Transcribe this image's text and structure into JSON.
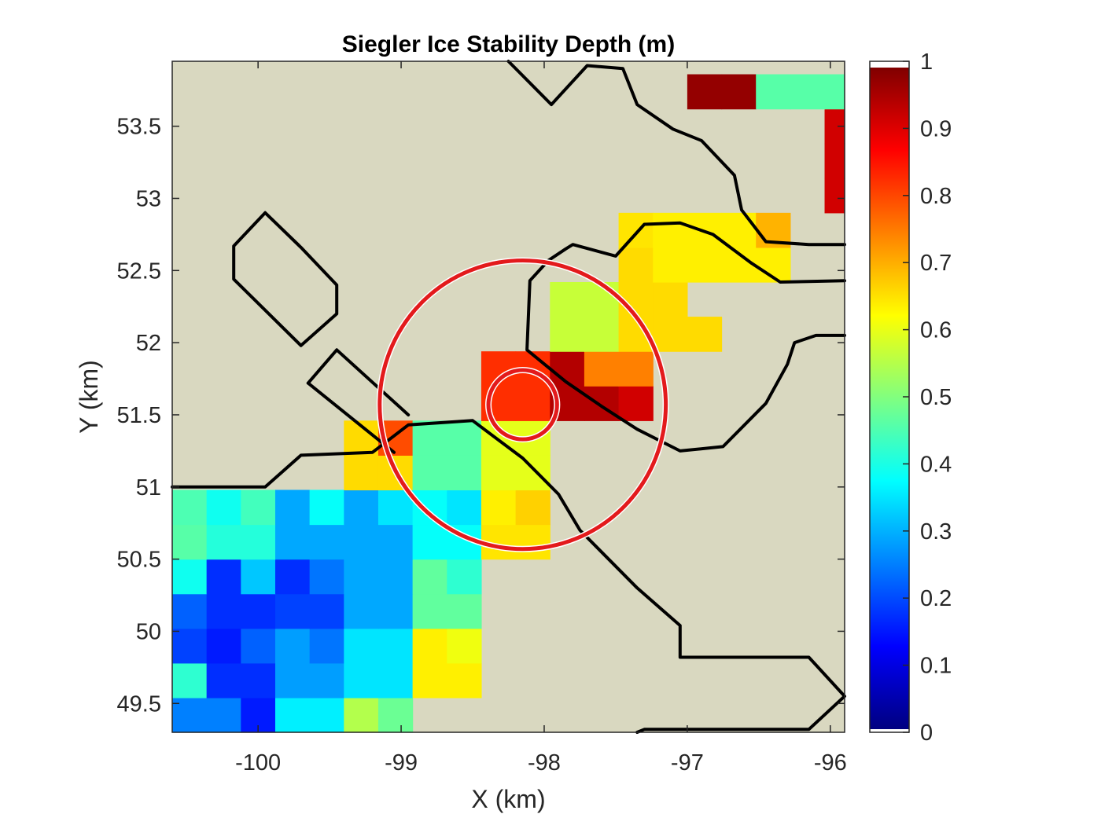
{
  "chart_data": {
    "type": "heatmap",
    "title": "Siegler Ice Stability Depth (m)",
    "xlabel": "X (km)",
    "ylabel": "Y (km)",
    "xlim": [
      -100.6,
      -95.9
    ],
    "ylim": [
      49.3,
      53.95
    ],
    "xticks": [
      -100,
      -99,
      -98,
      -97,
      -96
    ],
    "xtick_labels": [
      "-100",
      "-99",
      "-98",
      "-97",
      "-96"
    ],
    "yticks": [
      49.5,
      50,
      50.5,
      51,
      51.5,
      52,
      52.5,
      53,
      53.5
    ],
    "ytick_labels": [
      "49.5",
      "50",
      "50.5",
      "51",
      "51.5",
      "52",
      "52.5",
      "53",
      "53.5"
    ],
    "cell_size_km": 0.24,
    "background_color": "#d9d8c0",
    "colormap": "jet",
    "colorbar": {
      "range": [
        0,
        1
      ],
      "ticks": [
        0,
        0.1,
        0.2,
        0.3,
        0.4,
        0.5,
        0.6,
        0.7,
        0.8,
        0.9,
        1
      ],
      "tick_labels": [
        "0",
        "0.1",
        "0.2",
        "0.3",
        "0.4",
        "0.5",
        "0.6",
        "0.7",
        "0.8",
        "0.9",
        "1"
      ]
    },
    "grid_origin": {
      "x": -100.6,
      "y": 49.3
    },
    "cells": [
      [
        0,
        0,
        0.25
      ],
      [
        1,
        0,
        0.25
      ],
      [
        2,
        0,
        0.15
      ],
      [
        3,
        0,
        0.36
      ],
      [
        4,
        0,
        0.36
      ],
      [
        5,
        0,
        0.55
      ],
      [
        6,
        0,
        0.48
      ],
      [
        0,
        1,
        0.42
      ],
      [
        1,
        1,
        0.17
      ],
      [
        2,
        1,
        0.17
      ],
      [
        3,
        1,
        0.28
      ],
      [
        4,
        1,
        0.28
      ],
      [
        5,
        1,
        0.35
      ],
      [
        6,
        1,
        0.35
      ],
      [
        7,
        1,
        0.64
      ],
      [
        8,
        1,
        0.64
      ],
      [
        0,
        2,
        0.19
      ],
      [
        1,
        2,
        0.15
      ],
      [
        2,
        2,
        0.22
      ],
      [
        3,
        2,
        0.28
      ],
      [
        4,
        2,
        0.24
      ],
      [
        5,
        2,
        0.35
      ],
      [
        6,
        2,
        0.35
      ],
      [
        7,
        2,
        0.64
      ],
      [
        8,
        2,
        0.61
      ],
      [
        0,
        3,
        0.22
      ],
      [
        1,
        3,
        0.17
      ],
      [
        2,
        3,
        0.17
      ],
      [
        3,
        3,
        0.19
      ],
      [
        4,
        3,
        0.19
      ],
      [
        5,
        3,
        0.29
      ],
      [
        6,
        3,
        0.29
      ],
      [
        7,
        3,
        0.47
      ],
      [
        8,
        3,
        0.47
      ],
      [
        0,
        4,
        0.39
      ],
      [
        1,
        4,
        0.17
      ],
      [
        2,
        4,
        0.32
      ],
      [
        3,
        4,
        0.17
      ],
      [
        4,
        4,
        0.24
      ],
      [
        5,
        4,
        0.29
      ],
      [
        6,
        4,
        0.29
      ],
      [
        7,
        4,
        0.47
      ],
      [
        8,
        4,
        0.42
      ],
      [
        0,
        5,
        0.46
      ],
      [
        1,
        5,
        0.41
      ],
      [
        2,
        5,
        0.41
      ],
      [
        3,
        5,
        0.29
      ],
      [
        4,
        5,
        0.29
      ],
      [
        5,
        5,
        0.29
      ],
      [
        6,
        5,
        0.29
      ],
      [
        7,
        5,
        0.38
      ],
      [
        8,
        5,
        0.38
      ],
      [
        9,
        5,
        0.65
      ],
      [
        10,
        5,
        0.65
      ],
      [
        0,
        6,
        0.45
      ],
      [
        1,
        6,
        0.39
      ],
      [
        2,
        6,
        0.44
      ],
      [
        3,
        6,
        0.29
      ],
      [
        4,
        6,
        0.38
      ],
      [
        5,
        6,
        0.29
      ],
      [
        6,
        6,
        0.35
      ],
      [
        7,
        6,
        0.38
      ],
      [
        8,
        6,
        0.35
      ],
      [
        9,
        6,
        0.64
      ],
      [
        10,
        6,
        0.67
      ],
      [
        5,
        7,
        0.66
      ],
      [
        6,
        7,
        0.66
      ],
      [
        7,
        7,
        0.46
      ],
      [
        8,
        7,
        0.46
      ],
      [
        9,
        7,
        0.6
      ],
      [
        10,
        7,
        0.6
      ],
      [
        5,
        8,
        0.66
      ],
      [
        6,
        8,
        0.8
      ],
      [
        7,
        8,
        0.46
      ],
      [
        8,
        8,
        0.46
      ],
      [
        9,
        8,
        0.6
      ],
      [
        10,
        8,
        0.6
      ],
      [
        9,
        9,
        0.83
      ],
      [
        10,
        9,
        0.83
      ],
      [
        11,
        9,
        0.95
      ],
      [
        12,
        9,
        0.95
      ],
      [
        13,
        9,
        0.92
      ],
      [
        9,
        10,
        0.83
      ],
      [
        10,
        10,
        0.83
      ],
      [
        11,
        10,
        0.95
      ],
      [
        12,
        10,
        0.75
      ],
      [
        13,
        10,
        0.75
      ],
      [
        11,
        11,
        0.57
      ],
      [
        12,
        11,
        0.57
      ],
      [
        13,
        11,
        0.66
      ],
      [
        14,
        11,
        0.66
      ],
      [
        15,
        11,
        0.66
      ],
      [
        11,
        12,
        0.57
      ],
      [
        12,
        12,
        0.57
      ],
      [
        13,
        12,
        0.66
      ],
      [
        14,
        12,
        0.66
      ],
      [
        13,
        13,
        0.66
      ],
      [
        14,
        13,
        0.64
      ],
      [
        15,
        13,
        0.64
      ],
      [
        16,
        13,
        0.64
      ],
      [
        17,
        13,
        0.64
      ],
      [
        13,
        14,
        0.65
      ],
      [
        14,
        14,
        0.64
      ],
      [
        15,
        14,
        0.64
      ],
      [
        16,
        14,
        0.64
      ],
      [
        17,
        14,
        0.7
      ],
      [
        19,
        15,
        0.92
      ],
      [
        20,
        15,
        0.92
      ],
      [
        19,
        16,
        0.92
      ],
      [
        20,
        16,
        0.92
      ],
      [
        21,
        16,
        0.92
      ],
      [
        19,
        17,
        0.92
      ],
      [
        20,
        17,
        0.75
      ],
      [
        21,
        17,
        0.92
      ],
      [
        15,
        18,
        0.98
      ],
      [
        16,
        18,
        0.98
      ],
      [
        17,
        18,
        0.46
      ],
      [
        18,
        18,
        0.46
      ],
      [
        19,
        18,
        0.46
      ],
      [
        20,
        18,
        0.53
      ]
    ],
    "contours": [
      [
        [
          -100.6,
          51.0
        ],
        [
          -99.95,
          51.0
        ],
        [
          -99.7,
          51.22
        ],
        [
          -99.2,
          51.24
        ],
        [
          -98.95,
          51.43
        ],
        [
          -98.5,
          51.46
        ],
        [
          -98.15,
          51.2
        ],
        [
          -97.9,
          50.95
        ],
        [
          -97.75,
          50.7
        ],
        [
          -97.35,
          50.3
        ],
        [
          -97.05,
          50.04
        ],
        [
          -97.05,
          49.82
        ],
        [
          -96.15,
          49.82
        ],
        [
          -95.9,
          49.55
        ],
        [
          -96.15,
          49.32
        ],
        [
          -97.3,
          49.32
        ],
        [
          -97.35,
          49.3
        ]
      ],
      [
        [
          -99.65,
          51.72
        ],
        [
          -99.45,
          51.95
        ],
        [
          -98.95,
          51.5
        ]
      ],
      [
        [
          -99.65,
          51.72
        ],
        [
          -99.05,
          51.24
        ]
      ],
      [
        [
          -99.95,
          52.9
        ],
        [
          -99.7,
          52.66
        ],
        [
          -99.45,
          52.4
        ],
        [
          -99.45,
          52.2
        ],
        [
          -99.7,
          51.98
        ],
        [
          -100.17,
          52.44
        ],
        [
          -100.17,
          52.67
        ],
        [
          -99.95,
          52.9
        ]
      ],
      [
        [
          -98.25,
          53.95
        ],
        [
          -97.95,
          53.65
        ],
        [
          -97.7,
          53.92
        ],
        [
          -97.45,
          53.9
        ],
        [
          -97.35,
          53.65
        ],
        [
          -97.1,
          53.48
        ],
        [
          -96.9,
          53.4
        ],
        [
          -96.67,
          53.16
        ],
        [
          -96.62,
          52.92
        ],
        [
          -96.45,
          52.7
        ],
        [
          -96.15,
          52.68
        ],
        [
          -95.9,
          52.68
        ]
      ],
      [
        [
          -95.9,
          52.43
        ],
        [
          -96.35,
          52.42
        ],
        [
          -96.55,
          52.55
        ],
        [
          -96.82,
          52.75
        ],
        [
          -97.05,
          52.83
        ],
        [
          -97.3,
          52.82
        ],
        [
          -97.5,
          52.6
        ],
        [
          -97.8,
          52.68
        ],
        [
          -97.85,
          52.65
        ],
        [
          -97.97,
          52.57
        ],
        [
          -98.1,
          52.43
        ],
        [
          -98.12,
          51.95
        ],
        [
          -97.85,
          51.73
        ],
        [
          -97.6,
          51.56
        ],
        [
          -97.35,
          51.4
        ],
        [
          -97.05,
          51.25
        ],
        [
          -96.75,
          51.28
        ],
        [
          -96.45,
          51.58
        ],
        [
          -96.3,
          51.85
        ],
        [
          -96.25,
          52.0
        ],
        [
          -96.1,
          52.05
        ],
        [
          -95.9,
          52.05
        ]
      ]
    ],
    "annotations": {
      "circles": [
        {
          "cx": -98.15,
          "cy": 51.57,
          "r_km": 1.0,
          "color": "#e31a1c"
        },
        {
          "cx": -98.15,
          "cy": 51.57,
          "r_km": 0.24,
          "color": "#e31a1c"
        }
      ]
    }
  }
}
